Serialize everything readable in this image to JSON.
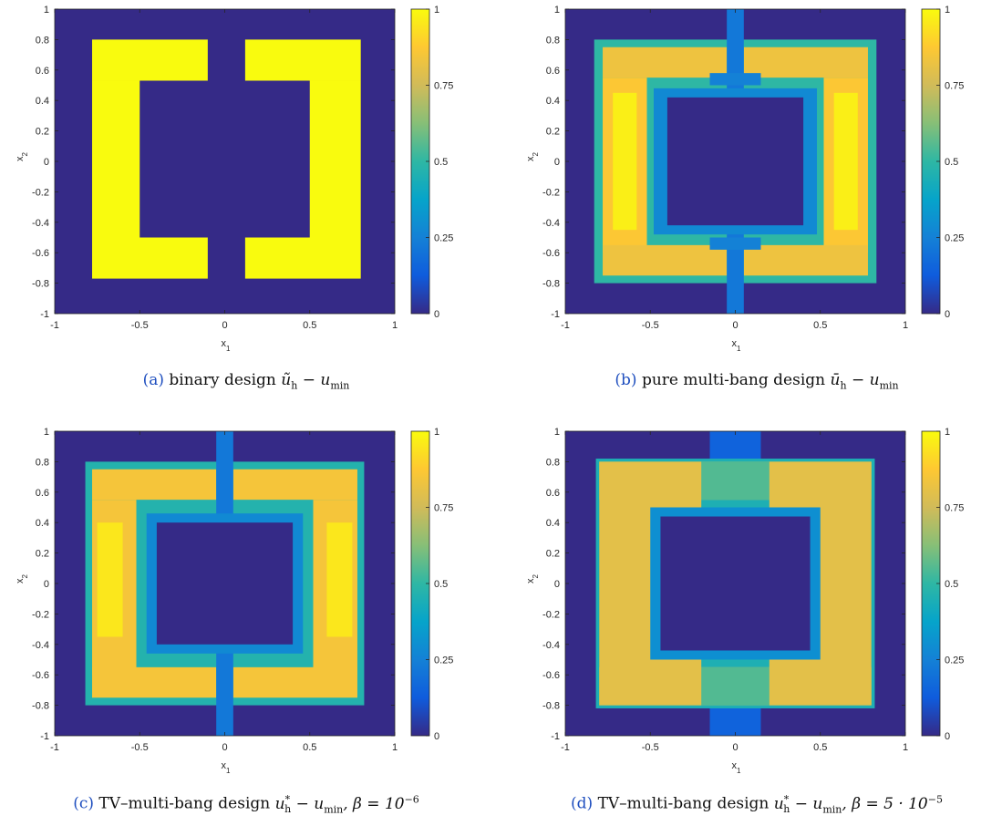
{
  "colors": {
    "colormap": "parula",
    "stops": [
      "#352a87",
      "#0f5cdd",
      "#1481d6",
      "#06a4ca",
      "#2eb7a4",
      "#87bf77",
      "#d1bb59",
      "#fec832",
      "#f9fb0e"
    ]
  },
  "chart_data": [
    {
      "id": "a",
      "type": "heatmap",
      "xlabel": "x",
      "xlabel_sub": "1",
      "ylabel": "x",
      "ylabel_sub": "2",
      "xlim": [
        -1,
        1
      ],
      "ylim": [
        -1,
        1
      ],
      "xticks": [
        "-1",
        "-0.5",
        "0",
        "0.5",
        "1"
      ],
      "yticks": [
        "-1",
        "-0.8",
        "-0.6",
        "-0.4",
        "-0.2",
        "0",
        "0.2",
        "0.4",
        "0.6",
        "0.8",
        "1"
      ],
      "colorbar": {
        "range": [
          0,
          1
        ],
        "ticks": [
          "0",
          "0.25",
          "0.5",
          "0.75",
          "1"
        ]
      },
      "grid": false,
      "caption": {
        "letter": "(a)",
        "text": "binary design",
        "math": "ũ_h − u_min"
      },
      "regions": [
        {
          "x": [
            -0.78,
            -0.1
          ],
          "y": [
            0.53,
            0.8
          ],
          "value": 1.0
        },
        {
          "x": [
            -0.78,
            -0.5
          ],
          "y": [
            -0.5,
            0.53
          ],
          "value": 1.0
        },
        {
          "x": [
            -0.78,
            -0.1
          ],
          "y": [
            -0.77,
            -0.5
          ],
          "value": 1.0
        },
        {
          "x": [
            0.12,
            0.8
          ],
          "y": [
            0.53,
            0.8
          ],
          "value": 1.0
        },
        {
          "x": [
            0.5,
            0.8
          ],
          "y": [
            -0.5,
            0.53
          ],
          "value": 1.0
        },
        {
          "x": [
            0.12,
            0.8
          ],
          "y": [
            -0.77,
            -0.5
          ],
          "value": 1.0
        }
      ]
    },
    {
      "id": "b",
      "type": "heatmap",
      "xlabel": "x",
      "xlabel_sub": "1",
      "ylabel": "x",
      "ylabel_sub": "2",
      "xlim": [
        -1,
        1
      ],
      "ylim": [
        -1,
        1
      ],
      "xticks": [
        "-1",
        "-0.5",
        "0",
        "0.5",
        "1"
      ],
      "yticks": [
        "-1",
        "-0.8",
        "-0.6",
        "-0.4",
        "-0.2",
        "0",
        "0.2",
        "0.4",
        "0.6",
        "0.8",
        "1"
      ],
      "colorbar": {
        "range": [
          0,
          1
        ],
        "ticks": [
          "0",
          "0.25",
          "0.5",
          "0.75",
          "1"
        ]
      },
      "grid": false,
      "caption": {
        "letter": "(b)",
        "text": "pure multi-bang design",
        "math": "ū_h − u_min"
      },
      "regions": [
        {
          "x": [
            -0.83,
            0.83
          ],
          "y": [
            -0.8,
            0.8
          ],
          "value": 0.5
        },
        {
          "x": [
            -0.78,
            -0.05
          ],
          "y": [
            0.55,
            0.75
          ],
          "value": 0.83
        },
        {
          "x": [
            -0.78,
            -0.52
          ],
          "y": [
            -0.6,
            0.55
          ],
          "value": 0.87
        },
        {
          "x": [
            -0.72,
            -0.58
          ],
          "y": [
            -0.45,
            0.45
          ],
          "value": 0.97
        },
        {
          "x": [
            -0.78,
            -0.05
          ],
          "y": [
            -0.75,
            -0.55
          ],
          "value": 0.83
        },
        {
          "x": [
            0.05,
            0.78
          ],
          "y": [
            0.55,
            0.75
          ],
          "value": 0.83
        },
        {
          "x": [
            0.52,
            0.78
          ],
          "y": [
            -0.6,
            0.55
          ],
          "value": 0.87
        },
        {
          "x": [
            0.58,
            0.72
          ],
          "y": [
            -0.45,
            0.45
          ],
          "value": 0.97
        },
        {
          "x": [
            0.05,
            0.78
          ],
          "y": [
            -0.75,
            -0.55
          ],
          "value": 0.83
        },
        {
          "x": [
            -0.05,
            0.05
          ],
          "y": [
            -1.0,
            1.0
          ],
          "value": 0.22
        },
        {
          "x": [
            -0.15,
            0.15
          ],
          "y": [
            0.5,
            0.58
          ],
          "value": 0.25
        },
        {
          "x": [
            -0.15,
            0.15
          ],
          "y": [
            -0.58,
            -0.5
          ],
          "value": 0.25
        },
        {
          "x": [
            -0.48,
            0.48
          ],
          "y": [
            -0.48,
            0.48
          ],
          "value": 0.28
        },
        {
          "x": [
            -0.4,
            0.4
          ],
          "y": [
            -0.42,
            0.42
          ],
          "value": 0.0
        }
      ]
    },
    {
      "id": "c",
      "type": "heatmap",
      "xlabel": "x",
      "xlabel_sub": "1",
      "ylabel": "x",
      "ylabel_sub": "2",
      "xlim": [
        -1,
        1
      ],
      "ylim": [
        -1,
        1
      ],
      "xticks": [
        "-1",
        "-0.5",
        "0",
        "0.5",
        "1"
      ],
      "yticks": [
        "-1",
        "-0.8",
        "-0.6",
        "-0.4",
        "-0.2",
        "0",
        "0.2",
        "0.4",
        "0.6",
        "0.8",
        "1"
      ],
      "colorbar": {
        "range": [
          0,
          1
        ],
        "ticks": [
          "0",
          "0.25",
          "0.5",
          "0.75",
          "1"
        ]
      },
      "grid": false,
      "caption": {
        "letter": "(c)",
        "text": "TV–multi-bang design",
        "math": "u*_h − u_min, β = 10^−6"
      },
      "regions": [
        {
          "x": [
            -0.82,
            0.82
          ],
          "y": [
            -0.8,
            0.8
          ],
          "value": 0.47
        },
        {
          "x": [
            -0.78,
            -0.05
          ],
          "y": [
            0.55,
            0.75
          ],
          "value": 0.85
        },
        {
          "x": [
            -0.78,
            -0.52
          ],
          "y": [
            -0.6,
            0.55
          ],
          "value": 0.85
        },
        {
          "x": [
            -0.75,
            -0.6
          ],
          "y": [
            -0.35,
            0.4
          ],
          "value": 0.95
        },
        {
          "x": [
            -0.78,
            -0.05
          ],
          "y": [
            -0.75,
            -0.55
          ],
          "value": 0.85
        },
        {
          "x": [
            0.05,
            0.78
          ],
          "y": [
            0.55,
            0.75
          ],
          "value": 0.85
        },
        {
          "x": [
            0.52,
            0.78
          ],
          "y": [
            -0.6,
            0.55
          ],
          "value": 0.85
        },
        {
          "x": [
            0.6,
            0.75
          ],
          "y": [
            -0.35,
            0.4
          ],
          "value": 0.95
        },
        {
          "x": [
            0.05,
            0.78
          ],
          "y": [
            -0.75,
            -0.55
          ],
          "value": 0.85
        },
        {
          "x": [
            -0.05,
            0.05
          ],
          "y": [
            -1.0,
            1.0
          ],
          "value": 0.22
        },
        {
          "x": [
            -0.46,
            0.46
          ],
          "y": [
            -0.46,
            0.46
          ],
          "value": 0.28
        },
        {
          "x": [
            -0.4,
            0.4
          ],
          "y": [
            -0.4,
            0.4
          ],
          "value": 0.0
        }
      ]
    },
    {
      "id": "d",
      "type": "heatmap",
      "xlabel": "x",
      "xlabel_sub": "1",
      "ylabel": "x",
      "ylabel_sub": "2",
      "xlim": [
        -1,
        1
      ],
      "ylim": [
        -1,
        1
      ],
      "xticks": [
        "-1",
        "-0.5",
        "0",
        "0.5",
        "1"
      ],
      "yticks": [
        "-1",
        "-0.8",
        "-0.6",
        "-0.4",
        "-0.2",
        "0",
        "0.2",
        "0.4",
        "0.6",
        "0.8",
        "1"
      ],
      "colorbar": {
        "range": [
          0,
          1
        ],
        "ticks": [
          "0",
          "0.25",
          "0.5",
          "0.75",
          "1"
        ]
      },
      "grid": false,
      "caption": {
        "letter": "(d)",
        "text": "TV–multi-bang design",
        "math": "u*_h − u_min, β = 5 · 10^−5"
      },
      "regions": [
        {
          "x": [
            -0.15,
            0.15
          ],
          "y": [
            -1.0,
            1.0
          ],
          "value": 0.15
        },
        {
          "x": [
            -0.82,
            0.82
          ],
          "y": [
            -0.82,
            0.82
          ],
          "value": 0.45
        },
        {
          "x": [
            -0.8,
            -0.2
          ],
          "y": [
            -0.8,
            0.8
          ],
          "value": 0.8
        },
        {
          "x": [
            0.2,
            0.8
          ],
          "y": [
            -0.8,
            0.8
          ],
          "value": 0.8
        },
        {
          "x": [
            -0.8,
            0.8
          ],
          "y": [
            -0.8,
            -0.55
          ],
          "value": 0.8
        },
        {
          "x": [
            -0.8,
            0.8
          ],
          "y": [
            0.55,
            0.8
          ],
          "value": 0.8
        },
        {
          "x": [
            -0.2,
            0.2
          ],
          "y": [
            -0.8,
            -0.55
          ],
          "value": 0.55
        },
        {
          "x": [
            -0.2,
            0.2
          ],
          "y": [
            0.55,
            0.8
          ],
          "value": 0.55
        },
        {
          "x": [
            -0.5,
            0.5
          ],
          "y": [
            -0.5,
            0.5
          ],
          "value": 0.3
        },
        {
          "x": [
            -0.44,
            0.44
          ],
          "y": [
            -0.44,
            0.44
          ],
          "value": 0.0
        }
      ]
    }
  ],
  "captions": [
    {
      "letter": "(a)",
      "text": "binary design"
    },
    {
      "letter": "(b)",
      "text": "pure multi-bang design"
    },
    {
      "letter": "(c)",
      "text": "TV–multi-bang design"
    },
    {
      "letter": "(d)",
      "text": "TV–multi-bang design"
    }
  ]
}
